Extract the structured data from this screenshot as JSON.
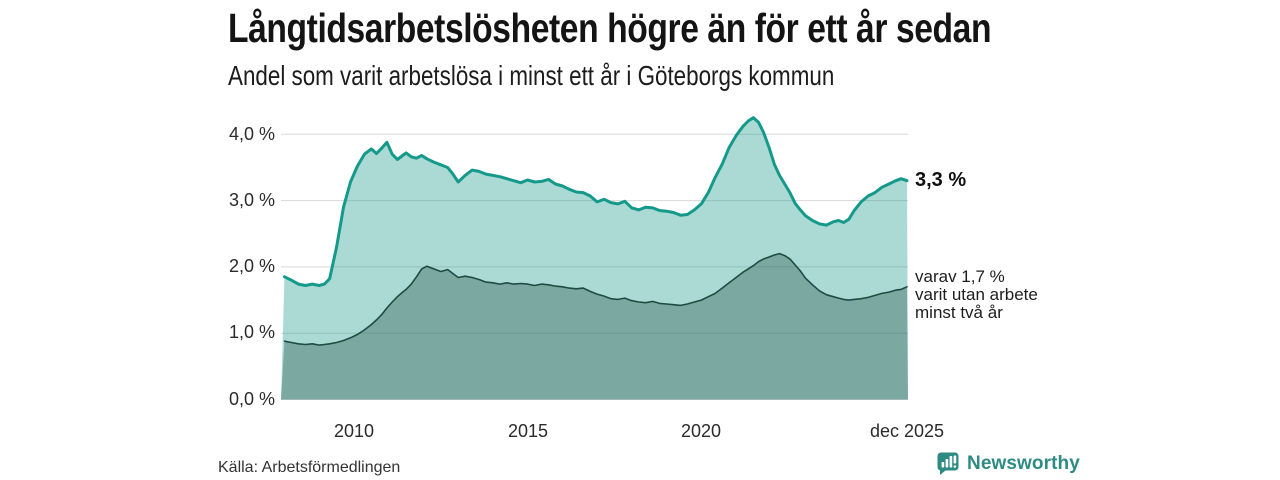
{
  "title": "Långtidsarbetslösheten högre än för ett år sedan",
  "subtitle": "Andel som varit arbetslösa i minst ett år i Göteborgs kommun",
  "source": "Källa: Arbetsförmedlingen",
  "branding": {
    "label": "Newsworthy",
    "color": "#2e8b83"
  },
  "annotations": {
    "total_end_label": "3,3 %",
    "twoplus_lines": [
      "varav 1,7 %",
      "varit utan arbete",
      "minst två år"
    ]
  },
  "colors": {
    "background": "#ffffff",
    "grid": "#d8d8d8",
    "title_text": "#141414",
    "tick_text": "#2b2b2b",
    "brand_teal": "#2e8b83"
  },
  "chart_data": {
    "type": "area",
    "title": "Långtidsarbetslösheten högre än för ett år sedan",
    "subtitle": "Andel som varit arbetslösa i minst ett år i Göteborgs kommun",
    "legend_position": "right-edge-annotations",
    "grid": true,
    "x_axis": {
      "range": [
        2007.9,
        2025.95
      ],
      "ticks": [
        {
          "t": 2010,
          "label": "2010"
        },
        {
          "t": 2015,
          "label": "2015"
        },
        {
          "t": 2020,
          "label": "2020"
        },
        {
          "t": 2025.92,
          "label": "dec 2025"
        }
      ]
    },
    "y_axis": {
      "range": [
        0,
        4.4
      ],
      "unit": "%",
      "ticks": [
        {
          "v": 0,
          "label": "0,0 %"
        },
        {
          "v": 1,
          "label": "1,0 %"
        },
        {
          "v": 2,
          "label": "2,0 %"
        },
        {
          "v": 3,
          "label": "3,0 %"
        },
        {
          "v": 4,
          "label": "4,0 %"
        }
      ]
    },
    "series": [
      {
        "key": "min_one_year",
        "end_label": "3,3 %",
        "line_color": "#14998a",
        "line_width": 3,
        "fill_color": "rgba(21,153,139,0.36)",
        "end_value": 3.3
      },
      {
        "key": "min_two_years",
        "end_label": "varav 1,7 % varit utan arbete minst två år",
        "line_color": "#1e4c42",
        "line_width": 1.6,
        "fill_color": "rgba(32,77,64,0.34)",
        "end_value": 1.7
      }
    ],
    "points_format": [
      "year_decimal",
      "min_one_year_pct",
      "min_two_years_pct"
    ],
    "points": [
      [
        2008.0,
        1.85,
        0.88
      ],
      [
        2008.2,
        1.8,
        0.86
      ],
      [
        2008.4,
        1.74,
        0.84
      ],
      [
        2008.6,
        1.72,
        0.83
      ],
      [
        2008.8,
        1.74,
        0.84
      ],
      [
        2009.0,
        1.72,
        0.82
      ],
      [
        2009.15,
        1.74,
        0.83
      ],
      [
        2009.3,
        1.82,
        0.84
      ],
      [
        2009.5,
        2.3,
        0.86
      ],
      [
        2009.7,
        2.9,
        0.89
      ],
      [
        2009.9,
        3.28,
        0.93
      ],
      [
        2010.1,
        3.52,
        0.98
      ],
      [
        2010.3,
        3.7,
        1.05
      ],
      [
        2010.5,
        3.78,
        1.13
      ],
      [
        2010.65,
        3.71,
        1.2
      ],
      [
        2010.8,
        3.79,
        1.28
      ],
      [
        2010.95,
        3.88,
        1.38
      ],
      [
        2011.1,
        3.7,
        1.47
      ],
      [
        2011.25,
        3.62,
        1.55
      ],
      [
        2011.4,
        3.68,
        1.62
      ],
      [
        2011.5,
        3.72,
        1.66
      ],
      [
        2011.65,
        3.66,
        1.74
      ],
      [
        2011.8,
        3.64,
        1.85
      ],
      [
        2011.95,
        3.68,
        1.97
      ],
      [
        2012.1,
        3.63,
        2.01
      ],
      [
        2012.3,
        3.58,
        1.97
      ],
      [
        2012.5,
        3.54,
        1.93
      ],
      [
        2012.7,
        3.5,
        1.96
      ],
      [
        2012.85,
        3.4,
        1.9
      ],
      [
        2013.0,
        3.28,
        1.84
      ],
      [
        2013.2,
        3.38,
        1.86
      ],
      [
        2013.4,
        3.46,
        1.84
      ],
      [
        2013.6,
        3.44,
        1.81
      ],
      [
        2013.8,
        3.4,
        1.77
      ],
      [
        2014.0,
        3.38,
        1.76
      ],
      [
        2014.2,
        3.36,
        1.74
      ],
      [
        2014.4,
        3.33,
        1.76
      ],
      [
        2014.6,
        3.3,
        1.74
      ],
      [
        2014.8,
        3.27,
        1.75
      ],
      [
        2015.0,
        3.31,
        1.74
      ],
      [
        2015.2,
        3.28,
        1.72
      ],
      [
        2015.4,
        3.29,
        1.74
      ],
      [
        2015.6,
        3.32,
        1.73
      ],
      [
        2015.8,
        3.25,
        1.71
      ],
      [
        2016.0,
        3.22,
        1.7
      ],
      [
        2016.2,
        3.17,
        1.68
      ],
      [
        2016.4,
        3.13,
        1.67
      ],
      [
        2016.6,
        3.12,
        1.68
      ],
      [
        2016.8,
        3.07,
        1.63
      ],
      [
        2017.0,
        2.98,
        1.59
      ],
      [
        2017.2,
        3.02,
        1.56
      ],
      [
        2017.4,
        2.97,
        1.52
      ],
      [
        2017.6,
        2.95,
        1.51
      ],
      [
        2017.8,
        2.99,
        1.53
      ],
      [
        2018.0,
        2.89,
        1.49
      ],
      [
        2018.2,
        2.86,
        1.47
      ],
      [
        2018.4,
        2.9,
        1.46
      ],
      [
        2018.6,
        2.89,
        1.48
      ],
      [
        2018.8,
        2.85,
        1.45
      ],
      [
        2019.0,
        2.84,
        1.44
      ],
      [
        2019.2,
        2.82,
        1.43
      ],
      [
        2019.4,
        2.78,
        1.42
      ],
      [
        2019.6,
        2.79,
        1.44
      ],
      [
        2019.8,
        2.86,
        1.47
      ],
      [
        2020.0,
        2.95,
        1.5
      ],
      [
        2020.2,
        3.12,
        1.55
      ],
      [
        2020.4,
        3.35,
        1.6
      ],
      [
        2020.6,
        3.55,
        1.68
      ],
      [
        2020.8,
        3.8,
        1.76
      ],
      [
        2021.0,
        3.98,
        1.84
      ],
      [
        2021.2,
        4.12,
        1.92
      ],
      [
        2021.35,
        4.2,
        1.97
      ],
      [
        2021.5,
        4.25,
        2.02
      ],
      [
        2021.65,
        4.18,
        2.08
      ],
      [
        2021.8,
        4.02,
        2.12
      ],
      [
        2021.95,
        3.8,
        2.15
      ],
      [
        2022.1,
        3.55,
        2.18
      ],
      [
        2022.25,
        3.38,
        2.2
      ],
      [
        2022.4,
        3.25,
        2.17
      ],
      [
        2022.55,
        3.12,
        2.12
      ],
      [
        2022.7,
        2.96,
        2.03
      ],
      [
        2022.85,
        2.86,
        1.94
      ],
      [
        2023.0,
        2.77,
        1.83
      ],
      [
        2023.2,
        2.7,
        1.73
      ],
      [
        2023.4,
        2.65,
        1.64
      ],
      [
        2023.6,
        2.63,
        1.58
      ],
      [
        2023.8,
        2.68,
        1.55
      ],
      [
        2023.95,
        2.7,
        1.53
      ],
      [
        2024.1,
        2.67,
        1.51
      ],
      [
        2024.25,
        2.72,
        1.5
      ],
      [
        2024.4,
        2.85,
        1.51
      ],
      [
        2024.6,
        2.98,
        1.52
      ],
      [
        2024.8,
        3.07,
        1.54
      ],
      [
        2025.0,
        3.12,
        1.57
      ],
      [
        2025.2,
        3.2,
        1.6
      ],
      [
        2025.4,
        3.25,
        1.62
      ],
      [
        2025.6,
        3.3,
        1.65
      ],
      [
        2025.75,
        3.33,
        1.66
      ],
      [
        2025.92,
        3.3,
        1.7
      ]
    ]
  }
}
